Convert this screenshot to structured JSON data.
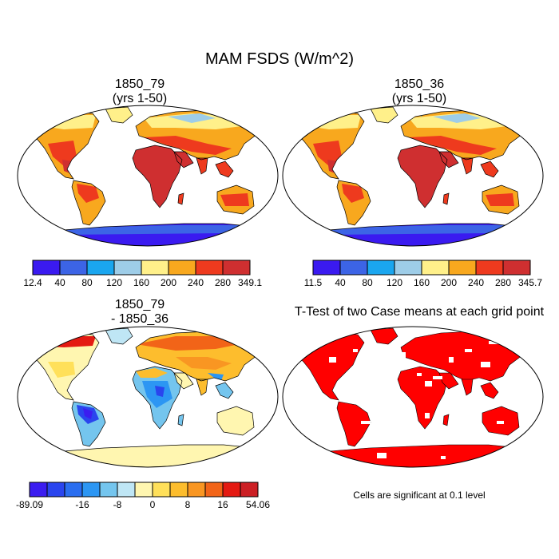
{
  "title": "MAM FSDS (W/m^2)",
  "panels": [
    {
      "title_line1": "1850_79",
      "title_line2": "(yrs 1-50)"
    },
    {
      "title_line1": "1850_36",
      "title_line2": "(yrs 1-50)"
    },
    {
      "title_line1": "1850_79",
      "title_line2": "- 1850_36"
    },
    {
      "title_line1": "T-Test of two Case means at each grid point"
    }
  ],
  "colorbars": [
    {
      "name": "fsds-79",
      "colors": [
        "#3a1af0",
        "#3c64e6",
        "#1aa6ef",
        "#9ecde8",
        "#fff08a",
        "#f8a81e",
        "#ee3a1e",
        "#cf2f30"
      ],
      "labels": [
        "12.4",
        "40",
        "80",
        "120",
        "160",
        "200",
        "240",
        "280",
        "349.1"
      ]
    },
    {
      "name": "fsds-36",
      "colors": [
        "#3a1af0",
        "#3c64e6",
        "#1aa6ef",
        "#9ecde8",
        "#fff08a",
        "#f8a81e",
        "#ee3a1e",
        "#cf2f30"
      ],
      "labels": [
        "11.5",
        "40",
        "80",
        "120",
        "160",
        "200",
        "240",
        "280",
        "345.7"
      ]
    },
    {
      "name": "fsds-diff",
      "colors": [
        "#3b1df0",
        "#2a45ee",
        "#2a6ef0",
        "#2c96f3",
        "#74c5ee",
        "#bfe6f5",
        "#fff6b0",
        "#ffe05a",
        "#fdbd2d",
        "#f99622",
        "#f26418",
        "#e41a12",
        "#cc1f24"
      ],
      "labels": [
        "-89.09",
        "-16",
        "-8",
        "0",
        "8",
        "16",
        "54.06"
      ],
      "label_boxes": [
        0,
        3,
        5,
        7,
        9,
        11,
        13
      ]
    }
  ],
  "significance_note": "Cells are significant at 0.1 level",
  "colors": {
    "map_border": "#000000",
    "significant": "#ff0000"
  }
}
